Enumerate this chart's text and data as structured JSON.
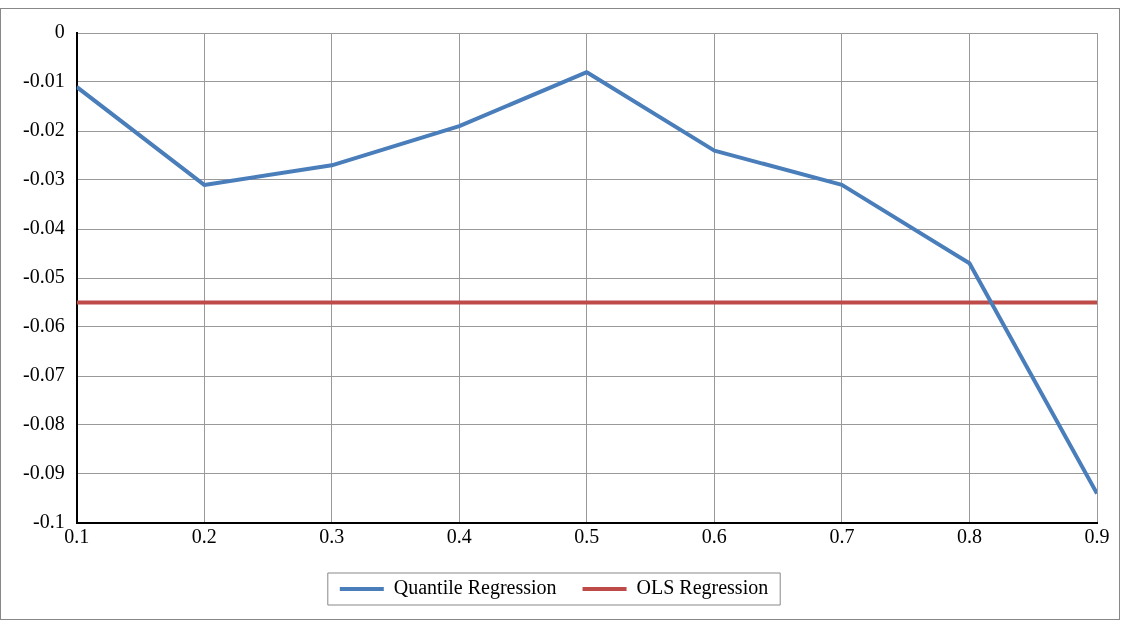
{
  "chart_data": {
    "type": "line",
    "x": [
      0.1,
      0.2,
      0.3,
      0.4,
      0.5,
      0.6,
      0.7,
      0.8,
      0.9
    ],
    "series": [
      {
        "name": "Quantile Regression",
        "color": "#4a7ebb",
        "values": [
          -0.011,
          -0.031,
          -0.027,
          -0.019,
          -0.008,
          -0.024,
          -0.031,
          -0.047,
          -0.094
        ]
      },
      {
        "name": "OLS Regression",
        "color": "#be4b48",
        "values": [
          -0.055,
          -0.055,
          -0.055,
          -0.055,
          -0.055,
          -0.055,
          -0.055,
          -0.055,
          -0.055
        ]
      }
    ],
    "xlim": [
      0.1,
      0.9
    ],
    "xticks": [
      0.1,
      0.2,
      0.3,
      0.4,
      0.5,
      0.6,
      0.7,
      0.8,
      0.9
    ],
    "ylim": [
      -0.1,
      0
    ],
    "yticks": [
      -0.1,
      -0.09,
      -0.08,
      -0.07,
      -0.06,
      -0.05,
      -0.04,
      -0.03,
      -0.02,
      -0.01,
      0
    ],
    "grid": true,
    "legend": "bottom",
    "marker": "none",
    "line_style": "solid"
  }
}
